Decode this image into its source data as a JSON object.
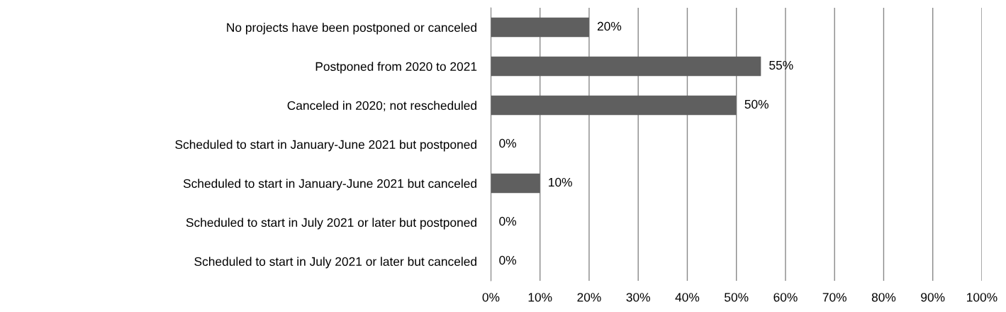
{
  "chart_data": {
    "type": "bar",
    "orientation": "horizontal",
    "categories": [
      "No projects have been postponed or canceled",
      "Postponed from 2020 to 2021",
      "Canceled in 2020; not rescheduled",
      "Scheduled to start in January-June 2021 but postponed",
      "Scheduled to start in January-June 2021 but canceled",
      "Scheduled to start in July 2021 or later but postponed",
      "Scheduled to start in July 2021 or later but canceled"
    ],
    "values": [
      20,
      55,
      50,
      0,
      10,
      0,
      0
    ],
    "value_labels": [
      "20%",
      "55%",
      "50%",
      "0%",
      "10%",
      "0%",
      "0%"
    ],
    "color": "#5f5f5f",
    "xlim": [
      0,
      100
    ],
    "xticks": [
      {
        "value": 0,
        "label": "0%"
      },
      {
        "value": 10,
        "label": "10%"
      },
      {
        "value": 20,
        "label": "20%"
      },
      {
        "value": 30,
        "label": "30%"
      },
      {
        "value": 40,
        "label": "40%"
      },
      {
        "value": 50,
        "label": "50%"
      },
      {
        "value": 60,
        "label": "60%"
      },
      {
        "value": 70,
        "label": "70%"
      },
      {
        "value": 80,
        "label": "80%"
      },
      {
        "value": 90,
        "label": "90%"
      },
      {
        "value": 100,
        "label": "100%"
      }
    ],
    "grid": "x"
  }
}
